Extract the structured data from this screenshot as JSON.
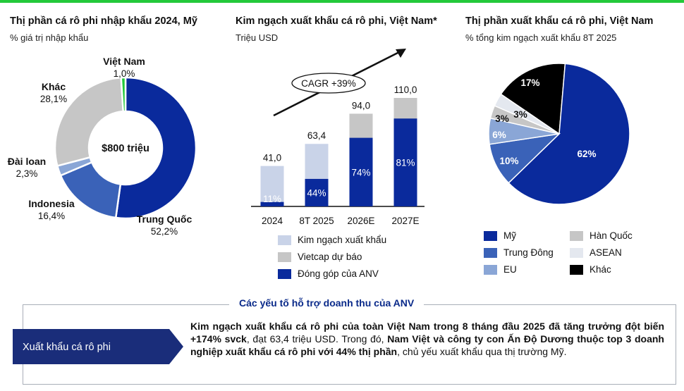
{
  "colors": {
    "navy": "#0a2a9c",
    "medium_blue": "#3a62b8",
    "light_blue": "#8aa6d6",
    "pale_blue": "#c9d3e8",
    "gray": "#c6c6c6",
    "very_light": "#e4e8ef",
    "black": "#000000",
    "green": "#23c93a",
    "dark_text": "#0a2a8a"
  },
  "panel1": {
    "title": "Thị phần cá rô phi nhập khẩu 2024, Mỹ",
    "subtitle": "% giá trị nhập khẩu",
    "center_label": "$800 triệu"
  },
  "panel2": {
    "title": "Kim ngạch xuất khẩu cá rô phi, Việt Nam*",
    "subtitle": "Triệu USD",
    "cagr_label": "CAGR +39%",
    "legend": [
      "Kim ngạch xuất khẩu",
      "Vietcap dự báo",
      "Đóng góp của ANV"
    ]
  },
  "panel3": {
    "title": "Thị phần xuất khẩu cá rô phi, Việt Nam",
    "subtitle": "% tổng kim ngạch xuất khẩu 8T 2025",
    "legend": [
      "Mỹ",
      "Hàn Quốc",
      "Trung Đông",
      "ASEAN",
      "EU",
      "Khác"
    ]
  },
  "chart_data": [
    {
      "type": "pie",
      "title": "Thị phần cá rô phi nhập khẩu 2024, Mỹ",
      "subtitle": "% giá trị nhập khẩu",
      "slices": [
        {
          "label": "Trung Quốc",
          "value": 52.2,
          "display": "52,2%",
          "color": "#0a2a9c"
        },
        {
          "label": "Indonesia",
          "value": 16.4,
          "display": "16,4%",
          "color": "#3a62b8"
        },
        {
          "label": "Đài loan",
          "value": 2.3,
          "display": "2,3%",
          "color": "#8aa6d6"
        },
        {
          "label": "Khác",
          "value": 28.1,
          "display": "28,1%",
          "color": "#c6c6c6"
        },
        {
          "label": "Việt Nam",
          "value": 1.0,
          "display": "1,0%",
          "color": "#23c93a"
        }
      ]
    },
    {
      "type": "bar",
      "title": "Kim ngạch xuất khẩu cá rô phi, Việt Nam*",
      "ylabel": "Triệu USD",
      "categories": [
        "2024",
        "8T 2025",
        "2026E",
        "2027E"
      ],
      "totals": [
        41.0,
        63.4,
        94.0,
        110.0
      ],
      "total_labels": [
        "41,0",
        "63,4",
        "94,0",
        "110,0"
      ],
      "forecast": [
        false,
        false,
        true,
        true
      ],
      "anv_share_pct": [
        11,
        44,
        74,
        81
      ],
      "anv_share_labels": [
        "11%",
        "44%",
        "74%",
        "81%"
      ],
      "ylim": [
        0,
        115
      ]
    },
    {
      "type": "pie",
      "title": "Thị phần xuất khẩu cá rô phi, Việt Nam",
      "subtitle": "% tổng kim ngạch xuất khẩu 8T 2025",
      "slices": [
        {
          "label": "Mỹ",
          "value": 62,
          "display": "62%",
          "color": "#0a2a9c"
        },
        {
          "label": "Trung Đông",
          "value": 10,
          "display": "10%",
          "color": "#3a62b8"
        },
        {
          "label": "EU",
          "value": 6,
          "display": "6%",
          "color": "#8aa6d6"
        },
        {
          "label": "Hàn Quốc",
          "value": 3,
          "display": "3%",
          "color": "#c6c6c6"
        },
        {
          "label": "ASEAN",
          "value": 3,
          "display": "3%",
          "color": "#e4e8ef"
        },
        {
          "label": "Khác",
          "value": 17,
          "display": "17%",
          "color": "#000000"
        }
      ]
    }
  ],
  "factors": {
    "title": "Các yếu tố hỗ trợ doanh thu của ANV",
    "tag": "Xuất khẩu cá rô phi",
    "seg1_bold": "Kim ngạch xuất khẩu cá rô phi của toàn Việt Nam trong 8 tháng đầu 2025 đã tăng trưởng đột biến +174% svck",
    "seg2": ", đạt 63,4 triệu USD. Trong đó, ",
    "seg3_bold": "Nam Việt và công ty con Ấn Độ Dương thuộc top 3 doanh nghiệp xuất khẩu cá rô phi với 44% thị phần",
    "seg4": ", chủ yếu xuất khẩu qua thị trường Mỹ."
  }
}
